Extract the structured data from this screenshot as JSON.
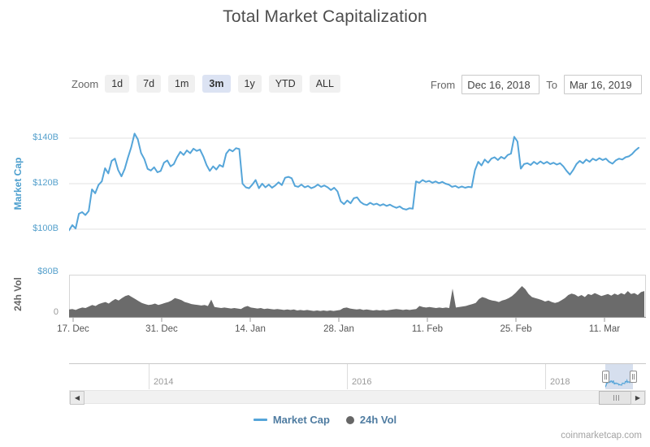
{
  "title": "Total Market Capitalization",
  "toolbar": {
    "zoom_label": "Zoom",
    "zoom_buttons": [
      "1d",
      "7d",
      "1m",
      "3m",
      "1y",
      "YTD",
      "ALL"
    ],
    "selected_zoom": "3m",
    "from_label": "From",
    "from_value": "Dec 16, 2018",
    "to_label": "To",
    "to_value": "Mar 16, 2019"
  },
  "legend": {
    "items": [
      {
        "label": "Market Cap"
      },
      {
        "label": "24h Vol"
      }
    ]
  },
  "footer": {
    "watermark": "coinmarketcap.com"
  },
  "chart_data": {
    "type": "line",
    "title": "Total Market Capitalization",
    "x_range": [
      "Dec 16, 2018",
      "Mar 16, 2019"
    ],
    "x_ticks": [
      "17. Dec",
      "31. Dec",
      "14. Jan",
      "28. Jan",
      "11. Feb",
      "25. Feb",
      "11. Mar"
    ],
    "grid": true,
    "legend_position": "bottom",
    "navigator": {
      "year_labels": [
        "2014",
        "2016",
        "2018"
      ]
    },
    "series": [
      {
        "name": "Market Cap",
        "type": "line",
        "color": "#55a5d9",
        "unit": "USD billions",
        "ylim": [
          95,
          145
        ],
        "axis_ticks": [
          "$100B",
          "$120B",
          "$140B"
        ],
        "values": [
          99.5,
          101.8,
          100.3,
          106.8,
          107.5,
          106.2,
          108.0,
          117.5,
          115.8,
          119.5,
          121.0,
          126.8,
          124.5,
          130.0,
          131.0,
          126.0,
          123.2,
          126.5,
          131.5,
          136.0,
          142.0,
          139.5,
          133.5,
          130.8,
          126.5,
          125.8,
          127.2,
          125.0,
          125.6,
          129.2,
          130.2,
          127.6,
          128.6,
          131.6,
          134.0,
          132.6,
          134.6,
          133.4,
          135.4,
          134.4,
          135.0,
          132.0,
          128.2,
          125.6,
          127.6,
          126.2,
          128.2,
          127.4,
          133.2,
          135.0,
          134.2,
          135.6,
          135.2,
          120.0,
          118.4,
          118.0,
          119.6,
          121.6,
          118.0,
          120.0,
          118.4,
          119.6,
          118.2,
          119.2,
          120.6,
          119.4,
          122.6,
          123.0,
          122.4,
          119.0,
          118.6,
          119.6,
          118.4,
          119.0,
          118.0,
          118.6,
          119.6,
          118.6,
          119.2,
          118.4,
          117.2,
          118.2,
          116.6,
          112.2,
          111.0,
          112.6,
          111.4,
          113.6,
          114.0,
          112.0,
          111.0,
          110.6,
          111.6,
          110.8,
          111.2,
          110.4,
          111.0,
          110.2,
          110.8,
          110.0,
          109.4,
          110.0,
          109.0,
          108.6,
          109.2,
          109.0,
          121.0,
          120.4,
          121.6,
          120.8,
          121.2,
          120.4,
          121.0,
          120.2,
          120.8,
          120.0,
          119.6,
          118.6,
          119.0,
          118.2,
          118.8,
          118.2,
          118.6,
          118.4,
          126.0,
          129.6,
          128.0,
          130.6,
          129.2,
          131.0,
          131.6,
          130.4,
          131.8,
          131.0,
          132.6,
          133.2,
          140.6,
          138.5,
          126.6,
          128.6,
          129.0,
          128.2,
          129.6,
          128.6,
          129.8,
          128.8,
          129.6,
          128.6,
          129.2,
          128.4,
          129.0,
          127.6,
          125.6,
          124.0,
          126.0,
          128.6,
          130.0,
          129.0,
          130.6,
          129.6,
          131.0,
          130.2,
          131.2,
          130.4,
          131.0,
          129.6,
          128.8,
          130.2,
          131.0,
          130.6,
          131.6,
          132.0,
          133.0,
          134.6,
          135.8
        ]
      },
      {
        "name": "24h Vol",
        "type": "area",
        "color": "#6b6b6b",
        "unit": "USD billions",
        "ylim": [
          0,
          80
        ],
        "axis_ticks": [
          "0",
          "$80B"
        ],
        "values": [
          15,
          16,
          14,
          17,
          19,
          18,
          21,
          24,
          22,
          26,
          28,
          30,
          27,
          32,
          36,
          33,
          38,
          42,
          44,
          40,
          36,
          32,
          28,
          26,
          24,
          25,
          27,
          24,
          26,
          28,
          30,
          33,
          38,
          36,
          34,
          30,
          28,
          26,
          25,
          24,
          23,
          24,
          22,
          35,
          20,
          19,
          18,
          19,
          18,
          17,
          18,
          17,
          16,
          20,
          22,
          19,
          18,
          17,
          18,
          16,
          17,
          16,
          15,
          16,
          15,
          14,
          15,
          14,
          15,
          13,
          14,
          13,
          14,
          13,
          12,
          13,
          12,
          13,
          12,
          13,
          12,
          13,
          14,
          18,
          19,
          17,
          16,
          15,
          16,
          14,
          15,
          14,
          13,
          14,
          13,
          14,
          13,
          14,
          15,
          16,
          15,
          14,
          15,
          14,
          15,
          16,
          22,
          20,
          19,
          20,
          19,
          18,
          19,
          18,
          19,
          18,
          57,
          19,
          20,
          21,
          22,
          24,
          26,
          28,
          36,
          40,
          38,
          35,
          33,
          32,
          30,
          33,
          35,
          38,
          42,
          48,
          55,
          62,
          56,
          46,
          40,
          38,
          36,
          34,
          31,
          33,
          30,
          28,
          30,
          34,
          38,
          44,
          47,
          45,
          41,
          44,
          40,
          46,
          44,
          48,
          45,
          42,
          44,
          46,
          43,
          47,
          44,
          48,
          45,
          52,
          46,
          48,
          44,
          50,
          52
        ]
      }
    ]
  }
}
